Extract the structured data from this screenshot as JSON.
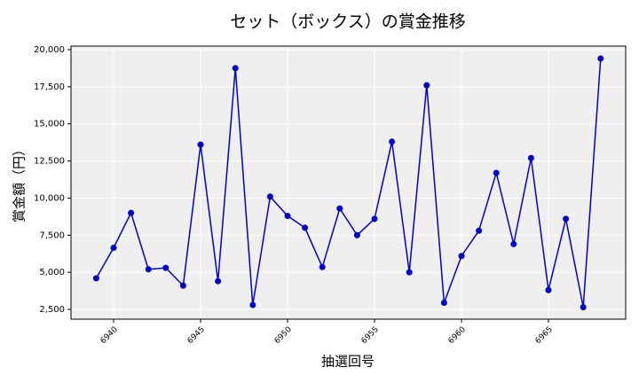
{
  "chart_data": {
    "type": "line",
    "title": "セット（ボックス）の賞金推移",
    "xlabel": "抽選回号",
    "ylabel": "賞金額（円）",
    "x": [
      6939,
      6940,
      6941,
      6942,
      6943,
      6944,
      6945,
      6946,
      6947,
      6948,
      6949,
      6950,
      6951,
      6952,
      6953,
      6954,
      6955,
      6956,
      6957,
      6958,
      6959,
      6960,
      6961,
      6962,
      6963,
      6964,
      6965,
      6966,
      6967,
      6968
    ],
    "series": [
      {
        "name": "賞金",
        "color": "#0000cc",
        "values": [
          4600,
          6650,
          9000,
          5200,
          5300,
          4100,
          13600,
          4400,
          18750,
          2800,
          10100,
          8800,
          8000,
          5350,
          9300,
          7500,
          8600,
          13800,
          5000,
          17600,
          2950,
          6100,
          7800,
          11700,
          6900,
          12700,
          3800,
          8600,
          2650,
          19400
        ]
      }
    ],
    "xlim": [
      6937.55,
      6969.44
    ],
    "xticks": [
      6940,
      6945,
      6950,
      6955,
      6960,
      6965
    ],
    "ylim": [
      1843,
      20239
    ],
    "yticks": [
      {
        "value": 2500,
        "label": "2,500"
      },
      {
        "value": 5000,
        "label": "5,000"
      },
      {
        "value": 7500,
        "label": "7,500"
      },
      {
        "value": 10000,
        "label": "10,000"
      },
      {
        "value": 12500,
        "label": "12,500"
      },
      {
        "value": 15000,
        "label": "15,000"
      },
      {
        "value": 17500,
        "label": "17,500"
      },
      {
        "value": 20000,
        "label": "20,000"
      }
    ],
    "grid": true
  }
}
